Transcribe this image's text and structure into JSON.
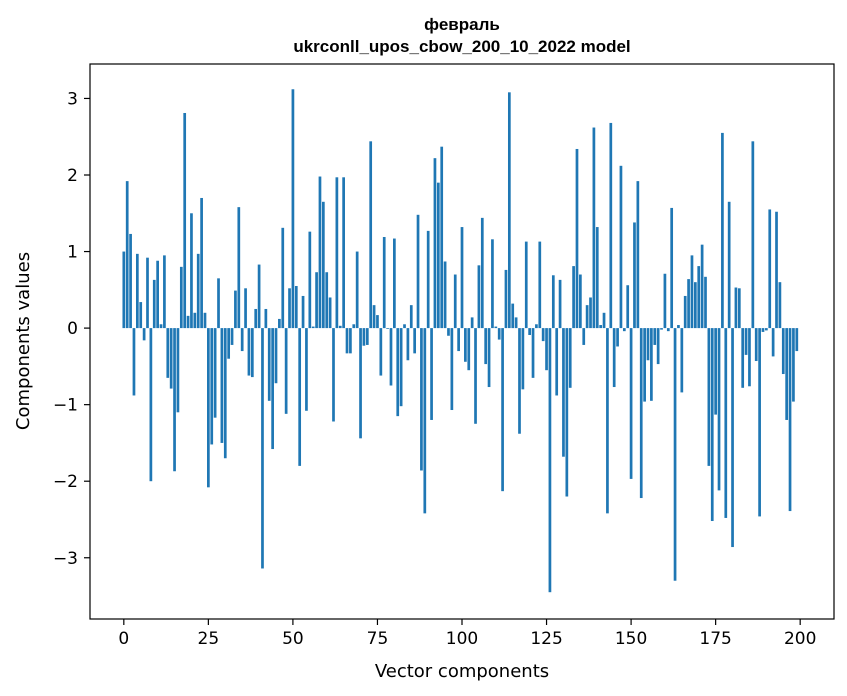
{
  "chart_data": {
    "type": "bar",
    "title": "февраль",
    "subtitle": "ukrconll_upos_cbow_200_10_2022 model",
    "xlabel": "Vector components",
    "ylabel": "Components values",
    "xlim": [
      -10,
      210
    ],
    "ylim": [
      -3.8,
      3.45
    ],
    "xticks": [
      0,
      25,
      50,
      75,
      100,
      125,
      150,
      175,
      200
    ],
    "xtick_labels": [
      "0",
      "25",
      "50",
      "75",
      "100",
      "125",
      "150",
      "175",
      "200"
    ],
    "yticks": [
      -3,
      -2,
      -1,
      0,
      1,
      2,
      3
    ],
    "ytick_labels": [
      "−3",
      "−2",
      "−1",
      "0",
      "1",
      "2",
      "3"
    ],
    "bar_color": "#1f77b4",
    "grid": false,
    "x": [
      0,
      1,
      2,
      3,
      4,
      5,
      6,
      7,
      8,
      9,
      10,
      11,
      12,
      13,
      14,
      15,
      16,
      17,
      18,
      19,
      20,
      21,
      22,
      23,
      24,
      25,
      26,
      27,
      28,
      29,
      30,
      31,
      32,
      33,
      34,
      35,
      36,
      37,
      38,
      39,
      40,
      41,
      42,
      43,
      44,
      45,
      46,
      47,
      48,
      49,
      50,
      51,
      52,
      53,
      54,
      55,
      56,
      57,
      58,
      59,
      60,
      61,
      62,
      63,
      64,
      65,
      66,
      67,
      68,
      69,
      70,
      71,
      72,
      73,
      74,
      75,
      76,
      77,
      78,
      79,
      80,
      81,
      82,
      83,
      84,
      85,
      86,
      87,
      88,
      89,
      90,
      91,
      92,
      93,
      94,
      95,
      96,
      97,
      98,
      99,
      100,
      101,
      102,
      103,
      104,
      105,
      106,
      107,
      108,
      109,
      110,
      111,
      112,
      113,
      114,
      115,
      116,
      117,
      118,
      119,
      120,
      121,
      122,
      123,
      124,
      125,
      126,
      127,
      128,
      129,
      130,
      131,
      132,
      133,
      134,
      135,
      136,
      137,
      138,
      139,
      140,
      141,
      142,
      143,
      144,
      145,
      146,
      147,
      148,
      149,
      150,
      151,
      152,
      153,
      154,
      155,
      156,
      157,
      158,
      159,
      160,
      161,
      162,
      163,
      164,
      165,
      166,
      167,
      168,
      169,
      170,
      171,
      172,
      173,
      174,
      175,
      176,
      177,
      178,
      179,
      180,
      181,
      182,
      183,
      184,
      185,
      186,
      187,
      188,
      189,
      190,
      191,
      192,
      193,
      194,
      195,
      196,
      197,
      198,
      199
    ],
    "values": [
      1.0,
      1.92,
      1.23,
      -0.88,
      0.97,
      0.34,
      -0.16,
      0.92,
      -2.0,
      0.63,
      0.88,
      0.05,
      0.95,
      -0.65,
      -0.79,
      -1.87,
      -1.1,
      0.8,
      2.81,
      0.16,
      1.5,
      0.2,
      0.97,
      1.7,
      0.2,
      -2.08,
      -1.52,
      -1.17,
      0.65,
      -1.5,
      -1.7,
      -0.4,
      -0.22,
      0.49,
      1.58,
      -0.3,
      0.52,
      -0.62,
      -0.64,
      0.25,
      0.83,
      -3.14,
      0.25,
      -0.95,
      -1.58,
      -0.72,
      0.12,
      1.31,
      -1.12,
      0.52,
      3.12,
      0.55,
      -1.8,
      0.42,
      -1.08,
      1.26,
      0.02,
      0.73,
      1.98,
      1.65,
      0.73,
      0.4,
      -1.22,
      1.97,
      0.03,
      1.97,
      -0.33,
      -0.33,
      0.05,
      1.0,
      -1.44,
      -0.23,
      -0.22,
      2.44,
      0.3,
      0.17,
      -0.62,
      1.19,
      -0.01,
      -0.75,
      1.17,
      -1.15,
      -1.02,
      0.05,
      -0.42,
      0.3,
      -0.33,
      1.48,
      -1.86,
      -2.42,
      1.27,
      -1.2,
      2.22,
      1.9,
      2.37,
      0.87,
      -0.1,
      -1.07,
      0.7,
      -0.3,
      1.32,
      -0.44,
      -0.55,
      0.14,
      -1.25,
      0.82,
      1.44,
      -0.47,
      -0.77,
      1.16,
      0.02,
      -0.15,
      -2.13,
      0.76,
      3.08,
      0.32,
      0.14,
      -1.38,
      -0.8,
      1.13,
      -0.09,
      -0.65,
      0.05,
      1.13,
      -0.17,
      -0.55,
      -3.45,
      0.69,
      -0.88,
      0.63,
      -1.68,
      -2.2,
      -0.78,
      0.81,
      2.34,
      0.7,
      -0.22,
      0.3,
      0.4,
      2.62,
      1.32,
      0.04,
      0.2,
      -2.42,
      2.68,
      -0.77,
      -0.24,
      2.12,
      -0.04,
      0.56,
      -1.97,
      1.38,
      1.92,
      -2.22,
      -0.96,
      -0.42,
      -0.95,
      -0.22,
      -0.47,
      -0.02,
      0.71,
      -0.04,
      1.57,
      -3.3,
      0.04,
      -0.84,
      0.42,
      0.64,
      0.95,
      0.6,
      0.81,
      1.09,
      0.67,
      -1.8,
      -2.52,
      -1.13,
      -2.12,
      2.55,
      -2.48,
      1.65,
      -2.86,
      0.53,
      0.52,
      -0.78,
      -0.35,
      -0.76,
      2.44,
      -0.43,
      -2.46,
      -0.05,
      -0.03,
      1.55,
      -0.37,
      1.52,
      0.6,
      -0.6,
      -1.2,
      -2.39,
      -0.96,
      -0.3
    ]
  }
}
